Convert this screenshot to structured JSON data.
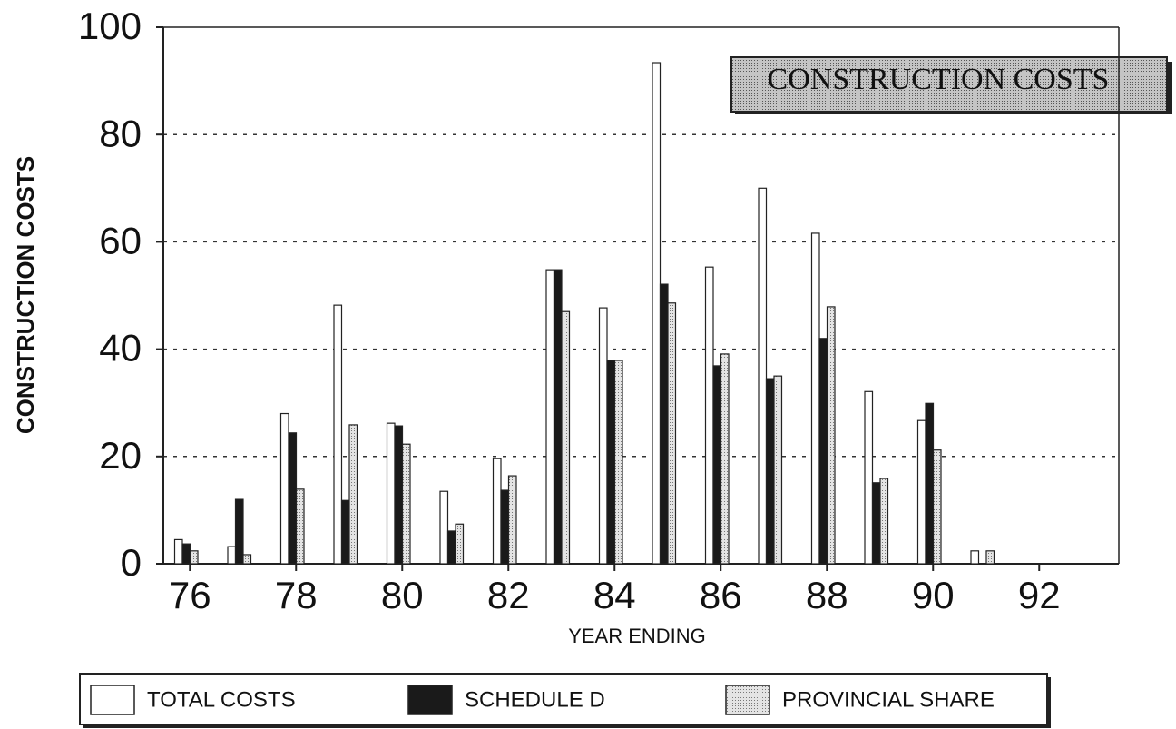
{
  "chart_data": {
    "type": "bar",
    "title": "CONSTRUCTION COSTS",
    "y_label": "CONSTRUCTION COSTS",
    "x_label": "YEAR ENDING",
    "categories": [
      "76",
      null,
      "78",
      null,
      "80",
      null,
      "82",
      null,
      "84",
      null,
      "86",
      null,
      "88",
      null,
      "90",
      null,
      "92",
      null
    ],
    "series": [
      {
        "name": "TOTAL COSTS",
        "color": "#ffffff",
        "values": [
          4.5,
          3.2,
          28,
          48.2,
          26.2,
          13.5,
          19.6,
          54.8,
          47.7,
          93.4,
          55.3,
          70,
          61.6,
          32.1,
          26.7,
          2.4,
          null,
          null
        ]
      },
      {
        "name": "SCHEDULE D",
        "color": "#1a1a1a",
        "values": [
          3.7,
          12,
          24.4,
          11.8,
          25.7,
          6.1,
          13.7,
          54.8,
          37.9,
          52.1,
          36.9,
          34.5,
          42,
          15.1,
          29.9,
          null,
          null,
          null
        ]
      },
      {
        "name": "PROVINCIAL SHARE",
        "color": "#d8d8d8",
        "values": [
          2.4,
          1.7,
          13.9,
          25.9,
          22.3,
          7.4,
          16.4,
          47,
          37.9,
          48.6,
          39.1,
          35,
          47.9,
          15.9,
          21.2,
          2.4,
          null,
          null
        ]
      }
    ],
    "ylim": [
      0,
      100
    ],
    "yticks": [
      0,
      20,
      40,
      60,
      80,
      100
    ],
    "grid": true
  }
}
